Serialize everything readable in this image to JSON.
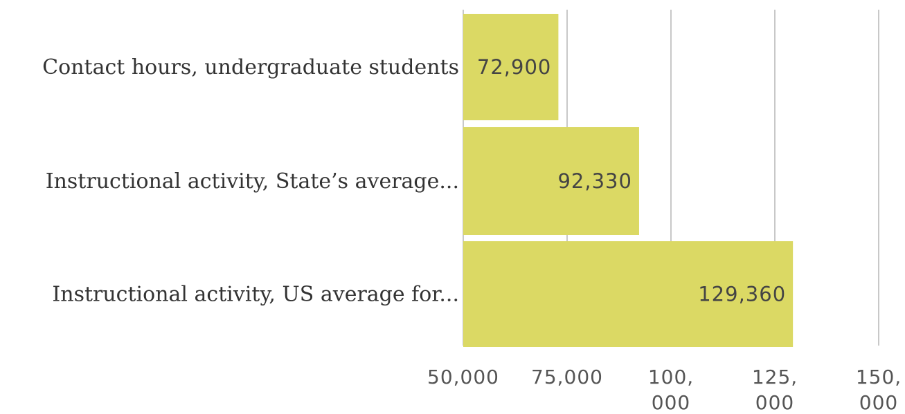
{
  "chart_data": {
    "type": "bar",
    "orientation": "horizontal",
    "categories": [
      "Contact hours, undergraduate students",
      "Instructional activity, State’s average...",
      "Instructional activity, US average for..."
    ],
    "values": [
      72900,
      92330,
      129360
    ],
    "value_labels": [
      "72,900",
      "92,330",
      "129,360"
    ],
    "xlim": [
      50000,
      150000
    ],
    "x_ticks": [
      50000,
      75000,
      100000,
      125000,
      150000
    ],
    "x_tick_labels": [
      [
        "50,000"
      ],
      [
        "75,000"
      ],
      [
        "100,",
        "000"
      ],
      [
        "125,",
        "000"
      ],
      [
        "150,",
        "000"
      ]
    ],
    "bar_color": "#dbd964",
    "grid": true,
    "title": "",
    "xlabel": "",
    "ylabel": ""
  }
}
